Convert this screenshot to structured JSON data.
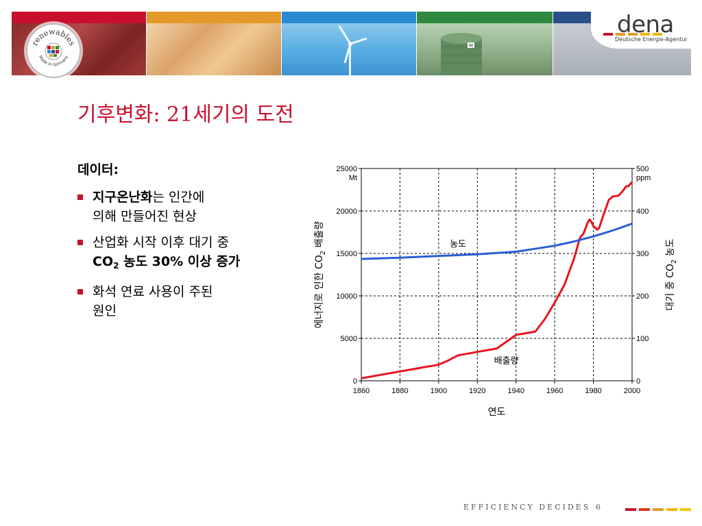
{
  "banner": {
    "seal_top": "renewables",
    "seal_bottom": "Made in Germany",
    "logo_word": "dena",
    "logo_sub": "Deutsche Energie-Agentur",
    "silo_mark": "M",
    "stripe_colors": [
      "#c8102e",
      "#e39a2a",
      "#2a8bd0",
      "#2f8a3f",
      "#2a4f8a"
    ]
  },
  "title": "기후변화: 21세기의 도전",
  "content": {
    "heading": "데이터:",
    "bullets": [
      {
        "bold": "지구온난화",
        "rest": "는 인간에",
        "line2": "의해 만들어진 현상"
      },
      {
        "line1": "산업화 시작 이후 대기 중",
        "co": "CO",
        "sub": "2",
        "bold2": " 농도 30% 이상 증가"
      },
      {
        "line1": "화석 연료 사용이 주된",
        "line2": "원인"
      }
    ]
  },
  "chart_data": {
    "type": "line",
    "x_ticks": [
      "1860",
      "1880",
      "1900",
      "1920",
      "1940",
      "1960",
      "1980",
      "2000"
    ],
    "xlim": [
      1860,
      2000
    ],
    "ylim_left": [
      0,
      25000
    ],
    "ylim_right": [
      0,
      500
    ],
    "y_left_ticks": [
      "0",
      "5000",
      "10000",
      "15000",
      "20000",
      "25000"
    ],
    "y_right_ticks": [
      "0",
      "100",
      "200",
      "300",
      "400",
      "500"
    ],
    "left_unit": "Mt",
    "right_unit": "ppm",
    "xlabel": "연도",
    "ylabel_left": {
      "pre": "에너지로 인한 CO",
      "sub": "2",
      "post": " 배출량"
    },
    "ylabel_right": {
      "pre": "대기 중 CO",
      "sub": "2",
      "post": " 농도"
    },
    "grid": true,
    "series": [
      {
        "name": "배출량",
        "axis": "left",
        "color": "#e8141e",
        "x": [
          1860,
          1870,
          1880,
          1890,
          1900,
          1905,
          1910,
          1920,
          1930,
          1935,
          1940,
          1945,
          1950,
          1955,
          1960,
          1965,
          1970,
          1973,
          1975,
          1977,
          1978,
          1979,
          1980,
          1982,
          1983,
          1985,
          1988,
          1990,
          1993,
          1995,
          1997,
          1998,
          2000
        ],
        "y": [
          300,
          700,
          1100,
          1500,
          1900,
          2400,
          3000,
          3400,
          3800,
          4600,
          5400,
          5600,
          5800,
          7300,
          9200,
          11300,
          14400,
          16800,
          17400,
          18600,
          19000,
          18700,
          18200,
          17800,
          18000,
          19400,
          21300,
          21700,
          21800,
          22300,
          22900,
          22900,
          23400
        ]
      },
      {
        "name": "농도",
        "axis": "right",
        "color": "#2a5cd8",
        "x": [
          1860,
          1880,
          1900,
          1920,
          1940,
          1950,
          1960,
          1970,
          1980,
          1990,
          2000
        ],
        "y": [
          287,
          290,
          294,
          298,
          304,
          311,
          318,
          328,
          340,
          354,
          370
        ]
      }
    ]
  },
  "footer": {
    "tagline": "EFFICIENCY DECIDES",
    "page": "6"
  }
}
